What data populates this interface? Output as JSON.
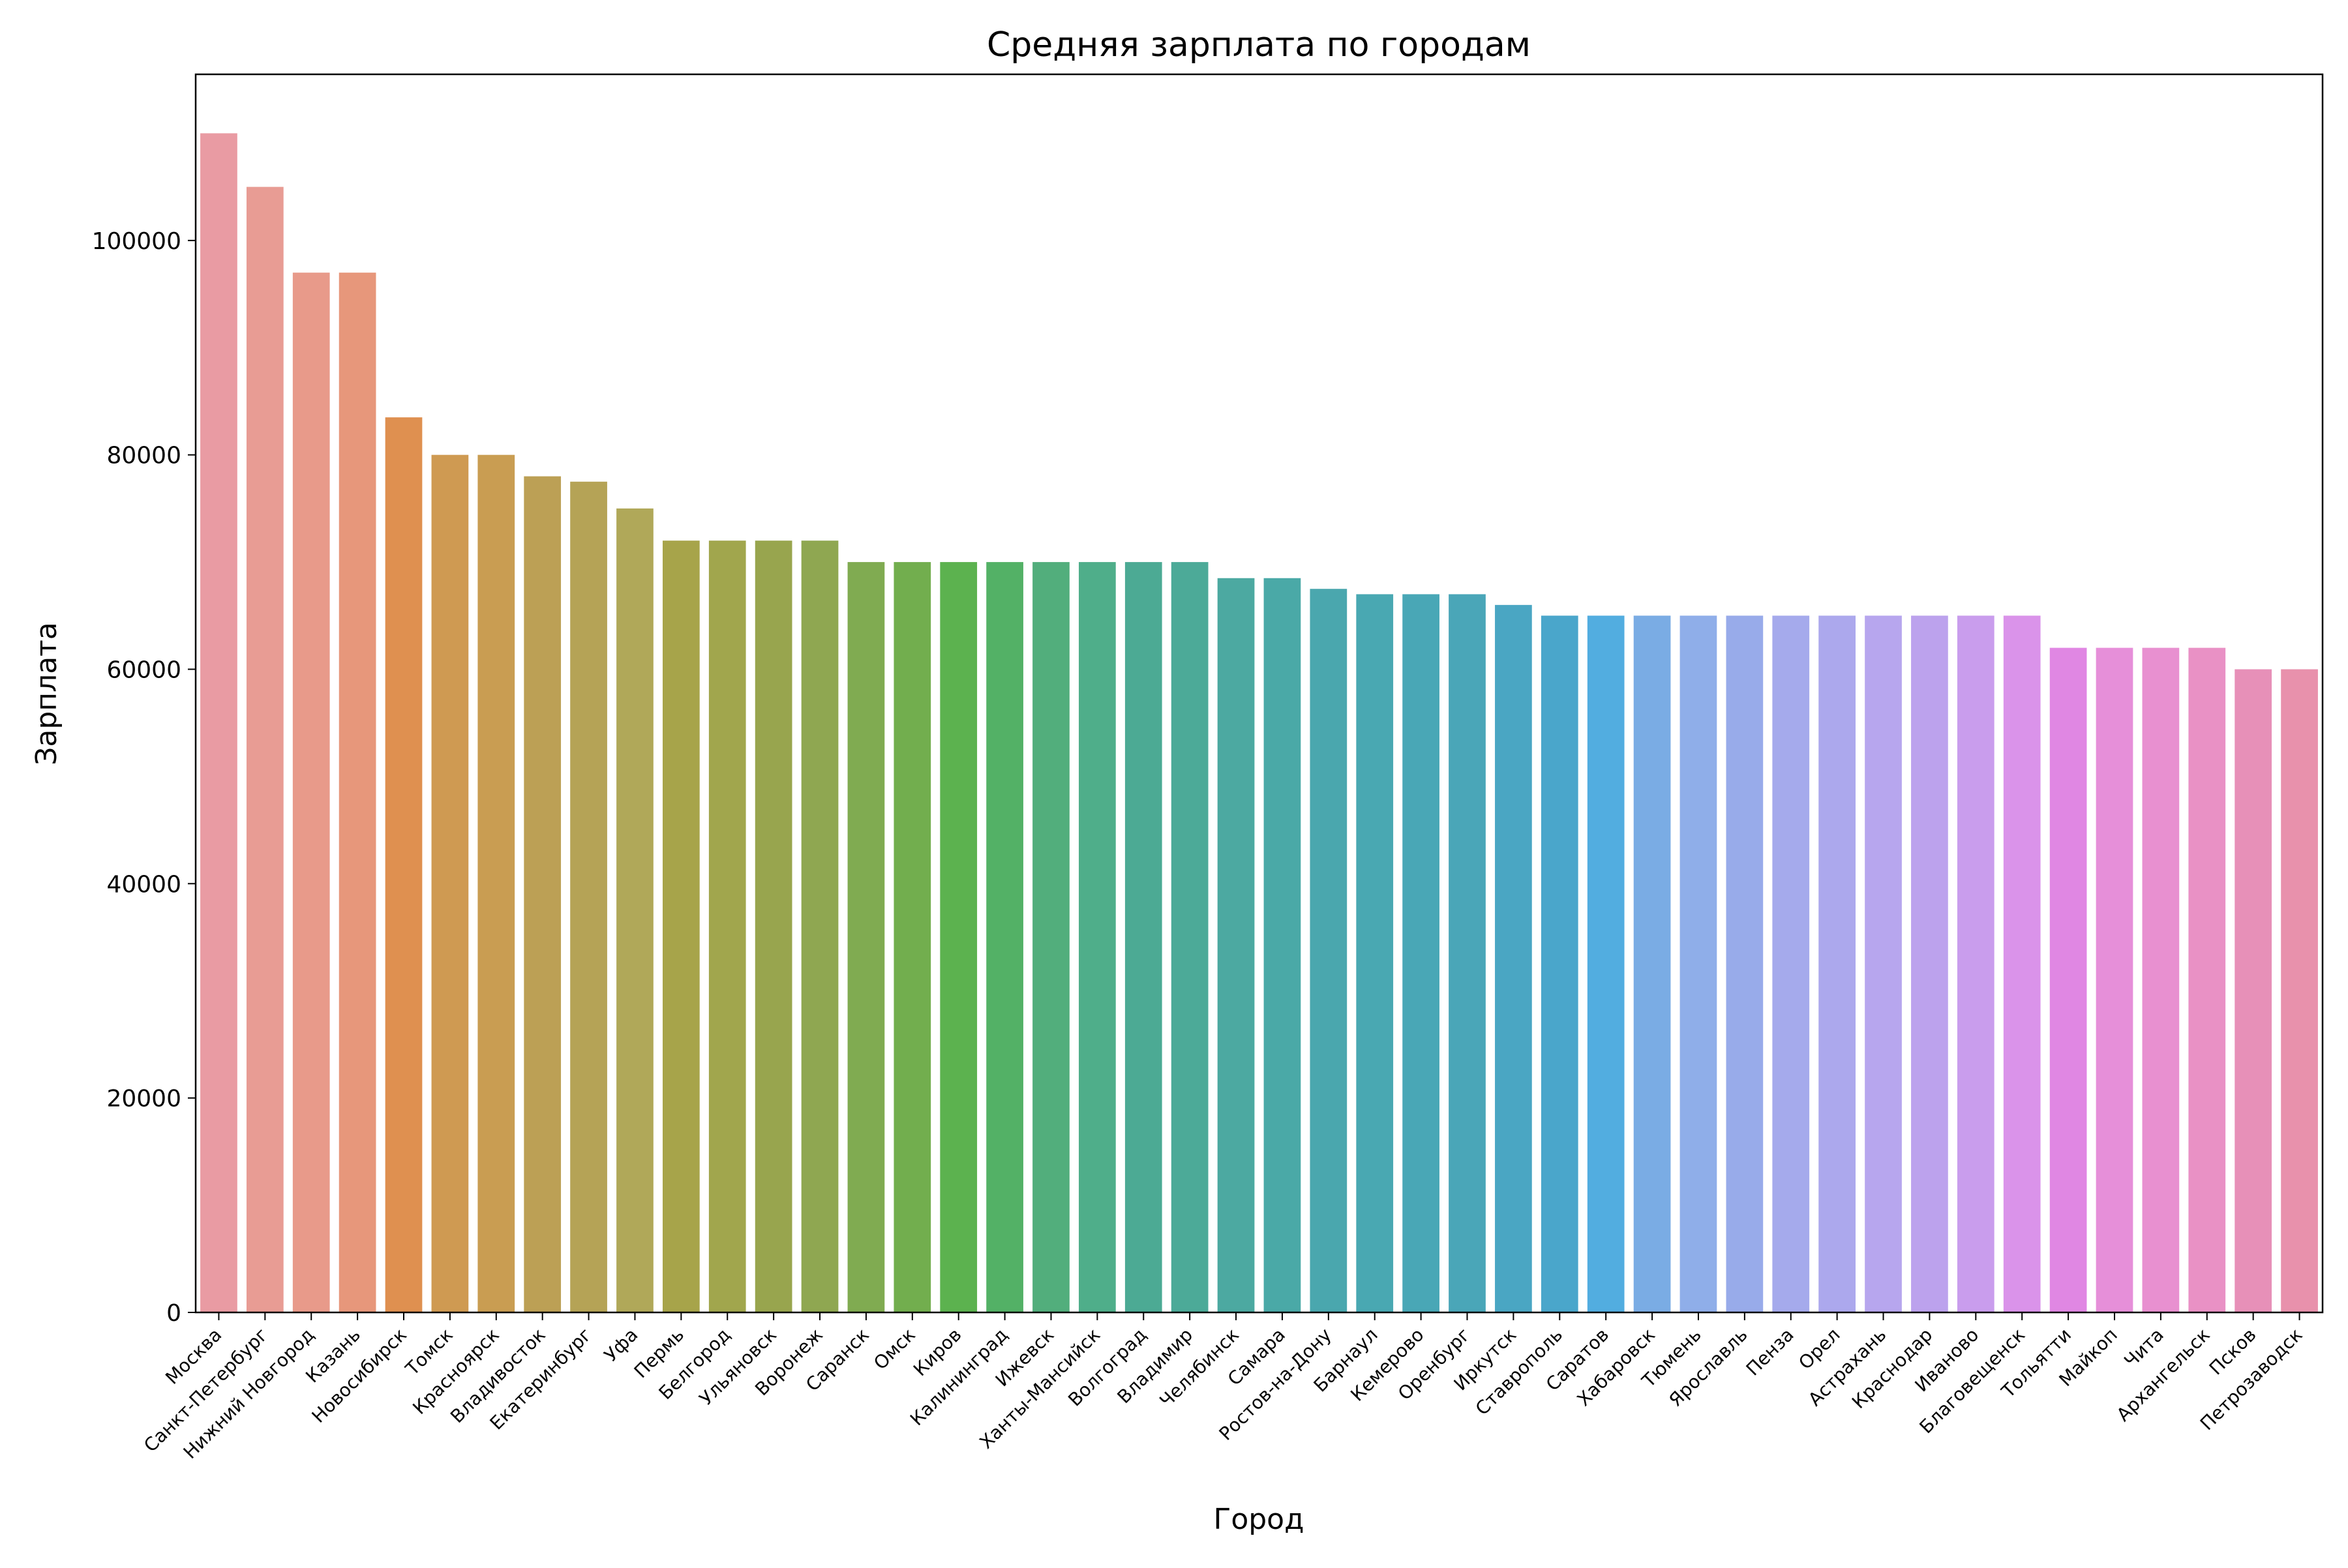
{
  "chart_data": {
    "type": "bar",
    "title": "Средняя зарплата по городам",
    "xlabel": "Город",
    "ylabel": "Зарплата",
    "ylim": [
      0,
      115500
    ],
    "yticks": [
      0,
      20000,
      40000,
      60000,
      80000,
      100000
    ],
    "ytick_labels": [
      "0",
      "20000",
      "40000",
      "60000",
      "80000",
      "100000"
    ],
    "grid": false,
    "legend": "none",
    "categories": [
      "Москва",
      "Санкт-Петербург",
      "Нижний Новгород",
      "Казань",
      "Новосибирск",
      "Томск",
      "Красноярск",
      "Владивосток",
      "Екатеринбург",
      "Уфа",
      "Пермь",
      "Белгород",
      "Ульяновск",
      "Воронеж",
      "Саранск",
      "Омск",
      "Киров",
      "Калининград",
      "Ижевск",
      "Ханты-Мансийск",
      "Волгоград",
      "Владимир",
      "Челябинск",
      "Самара",
      "Ростов-на-Дону",
      "Барнаул",
      "Кемерово",
      "Оренбург",
      "Иркутск",
      "Ставрополь",
      "Саратов",
      "Хабаровск",
      "Тюмень",
      "Ярославль",
      "Пенза",
      "Орел",
      "Астрахань",
      "Краснодар",
      "Иваново",
      "Благовещенск",
      "Тольятти",
      "Майкоп",
      "Чита",
      "Архангельск",
      "Псков",
      "Петрозаводск"
    ],
    "values": [
      110000,
      105000,
      97000,
      97000,
      83500,
      80000,
      80000,
      78000,
      77500,
      75000,
      72000,
      72000,
      72000,
      72000,
      70000,
      70000,
      70000,
      70000,
      70000,
      70000,
      70000,
      70000,
      68500,
      68500,
      67500,
      67000,
      67000,
      67000,
      66000,
      65000,
      65000,
      65000,
      65000,
      65000,
      65000,
      65000,
      65000,
      65000,
      65000,
      65000,
      62000,
      62000,
      62000,
      62000,
      60000,
      60000
    ],
    "colors": [
      "#e99ba3",
      "#e89c94",
      "#e89a8a",
      "#e7977b",
      "#df9050",
      "#cf9a52",
      "#c99d52",
      "#bca055",
      "#b5a356",
      "#b0a859",
      "#a7a44a",
      "#a1a64d",
      "#98a54e",
      "#8fa751",
      "#80ab51",
      "#72ae4e",
      "#5cb24f",
      "#53b166",
      "#52ae7c",
      "#4fae8a",
      "#4caa94",
      "#4caa98",
      "#4ca9a1",
      "#4aa9a7",
      "#4aa7ae",
      "#49a8b2",
      "#49a7b6",
      "#4aa6b8",
      "#4aa6c3",
      "#4aa6cb",
      "#52ade0",
      "#7aace4",
      "#8faee9",
      "#98abea",
      "#a5aaec",
      "#aca8ed",
      "#b7a6ee",
      "#bca2ed",
      "#c99ded",
      "#da93ea",
      "#e087e3",
      "#e68fd9",
      "#e890d0",
      "#e991c5",
      "#e790b8",
      "#e891ac"
    ]
  }
}
